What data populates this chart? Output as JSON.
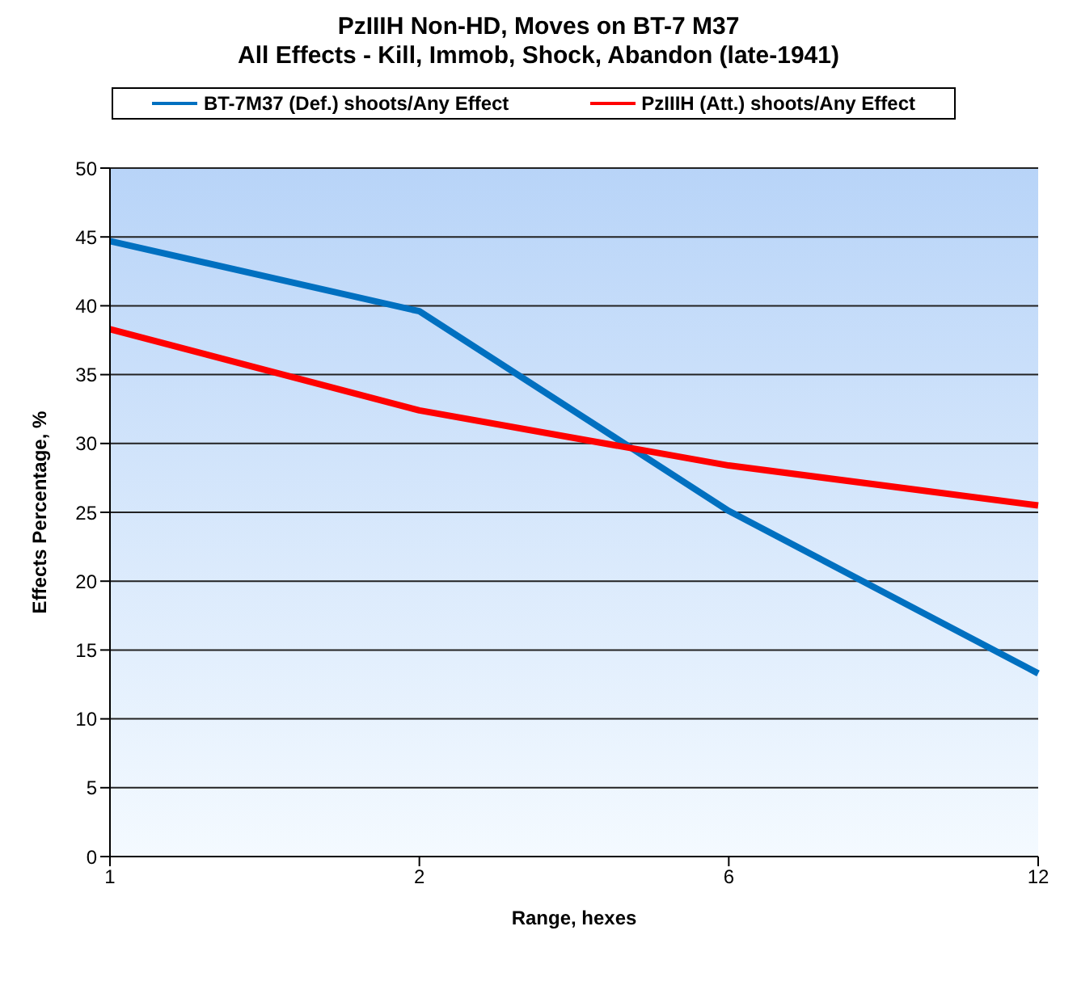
{
  "chart_data": {
    "type": "line",
    "title": "PzIIIH Non-HD, Moves on BT-7 M37\nAll Effects - Kill, Immob, Shock, Abandon (late-1941)",
    "xlabel": "Range, hexes",
    "ylabel": "Effects Percentage, %",
    "categories": [
      "1",
      "2",
      "6",
      "12"
    ],
    "series": [
      {
        "name": "BT-7M37 (Def.) shoots/Any  Effect",
        "color": "#0070c0",
        "values": [
          44.7,
          39.6,
          25.1,
          13.3
        ]
      },
      {
        "name": "PzIIIH (Att.) shoots/Any  Effect",
        "color": "#ff0000",
        "values": [
          38.3,
          32.4,
          28.4,
          25.5
        ]
      }
    ],
    "ylim": [
      0,
      50
    ],
    "yticks": [
      0,
      5,
      10,
      15,
      20,
      25,
      30,
      35,
      40,
      45,
      50
    ],
    "grid": "y",
    "legend": "top",
    "marker": "none",
    "line_style": "solid"
  }
}
